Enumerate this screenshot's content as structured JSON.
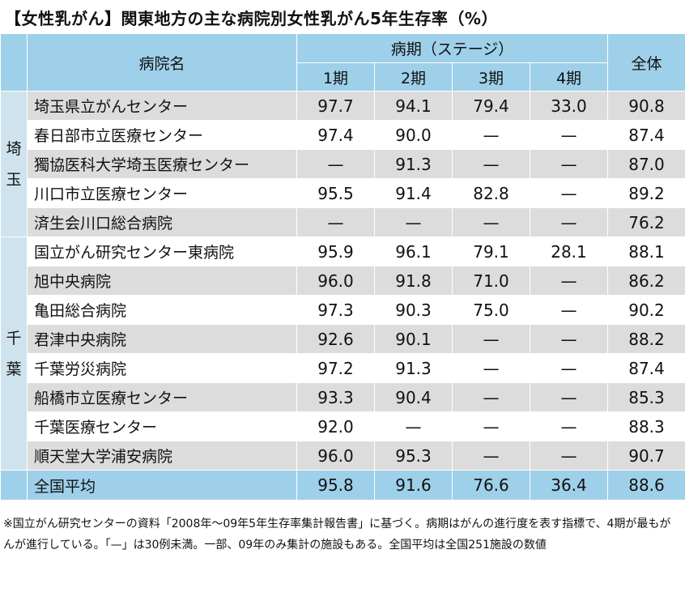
{
  "title": "【女性乳がん】関東地方の主な病院別女性乳がん5年生存率（%）",
  "header": {
    "hospital": "病院名",
    "stage_group": "病期（ステージ）",
    "stages": [
      "1期",
      "2期",
      "3期",
      "4期"
    ],
    "total": "全体"
  },
  "groups": [
    {
      "prefecture": "埼\n玉",
      "rows": [
        {
          "name": "埼玉県立がんセンター",
          "values": [
            "97.7",
            "94.1",
            "79.4",
            "33.0",
            "90.8"
          ]
        },
        {
          "name": "春日部市立医療センター",
          "values": [
            "97.4",
            "90.0",
            "—",
            "—",
            "87.4"
          ]
        },
        {
          "name": "獨協医科大学埼玉医療センター",
          "values": [
            "—",
            "91.3",
            "—",
            "—",
            "87.0"
          ]
        },
        {
          "name": "川口市立医療センター",
          "values": [
            "95.5",
            "91.4",
            "82.8",
            "—",
            "89.2"
          ]
        },
        {
          "name": "済生会川口総合病院",
          "values": [
            "—",
            "—",
            "—",
            "—",
            "76.2"
          ]
        }
      ]
    },
    {
      "prefecture": "千\n葉",
      "rows": [
        {
          "name": "国立がん研究センター東病院",
          "values": [
            "95.9",
            "96.1",
            "79.1",
            "28.1",
            "88.1"
          ]
        },
        {
          "name": "旭中央病院",
          "values": [
            "96.0",
            "91.8",
            "71.0",
            "—",
            "86.2"
          ]
        },
        {
          "name": "亀田総合病院",
          "values": [
            "97.3",
            "90.3",
            "75.0",
            "—",
            "90.2"
          ]
        },
        {
          "name": "君津中央病院",
          "values": [
            "92.6",
            "90.1",
            "—",
            "—",
            "88.2"
          ]
        },
        {
          "name": "千葉労災病院",
          "values": [
            "97.2",
            "91.3",
            "—",
            "—",
            "87.4"
          ]
        },
        {
          "name": "船橋市立医療センター",
          "values": [
            "93.3",
            "90.4",
            "—",
            "—",
            "85.3"
          ]
        },
        {
          "name": "千葉医療センター",
          "values": [
            "92.0",
            "—",
            "—",
            "—",
            "88.3"
          ]
        },
        {
          "name": "順天堂大学浦安病院",
          "values": [
            "96.0",
            "95.3",
            "—",
            "—",
            "90.7"
          ]
        }
      ]
    }
  ],
  "national": {
    "name": "全国平均",
    "values": [
      "95.8",
      "91.6",
      "76.6",
      "36.4",
      "88.6"
    ]
  },
  "note": "※国立がん研究センターの資料「2008年～09年5年生存率集計報告書」に基づく。病期はがんの進行度を表す指標で、4期が最もがんが進行している。「—」は30例未満。一部、09年のみ集計の施設もある。全国平均は全国251施設の数値",
  "colors": {
    "header_bg": "#9ed0ea",
    "pref_bg": "#cfe3ee",
    "stripe_gray": "#dcdcdc"
  }
}
